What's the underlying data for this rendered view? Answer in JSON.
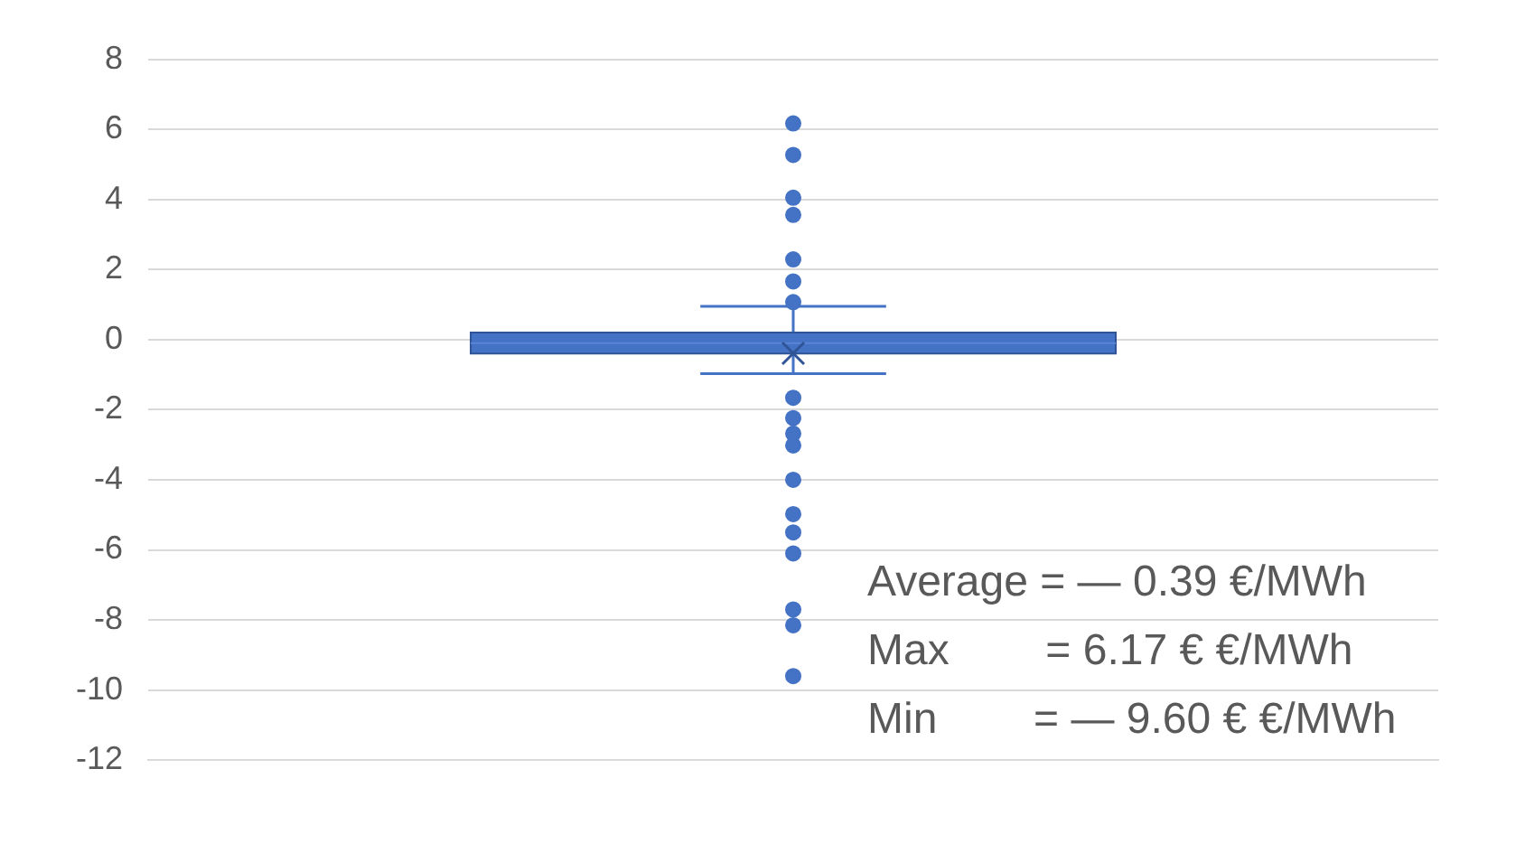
{
  "chart_data": {
    "type": "box",
    "categories": [
      null
    ],
    "color": "#4472c4",
    "boxes": [
      {
        "low": -0.97,
        "q1": -0.4,
        "median": -0.1,
        "q3": 0.2,
        "high": 0.95,
        "mean": -0.39,
        "outliers": [
          6.17,
          5.27,
          4.05,
          3.56,
          2.29,
          1.66,
          1.07,
          -1.66,
          -2.24,
          -2.68,
          -3.02,
          -4.0,
          -4.98,
          -5.5,
          -6.1,
          -7.7,
          -8.15,
          -9.6
        ]
      }
    ],
    "ylim": [
      -12,
      8
    ],
    "yticks": [
      -12,
      -10,
      -8,
      -6,
      -4,
      -2,
      0,
      2,
      4,
      6,
      8
    ],
    "grid": "y",
    "legend": false,
    "marker": "circle",
    "annotations": [
      "Average = — 0.39 €/MWh",
      "Max        = 6.17 € €/MWh",
      "Min        = — 9.60 € €/MWh"
    ]
  }
}
